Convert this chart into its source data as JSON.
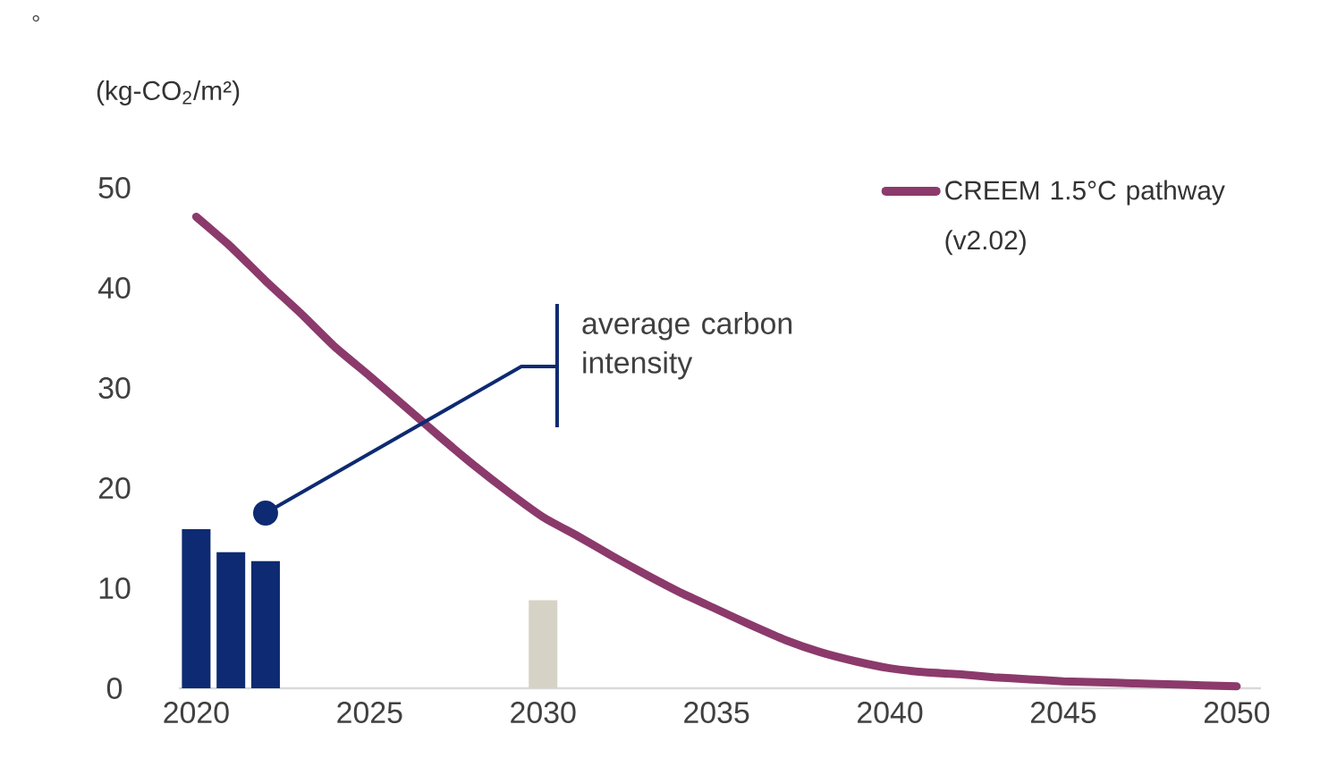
{
  "chart_data": {
    "type": "bar",
    "ylabel": "(kg-CO$_{2}$/m²)",
    "xlim": [
      2019.5,
      2050.7
    ],
    "ylim": [
      0,
      50
    ],
    "xticks": [
      2020,
      2025,
      2030,
      2035,
      2040,
      2045,
      2050
    ],
    "yticks": [
      0,
      10,
      20,
      30,
      40,
      50
    ],
    "grid": false,
    "legend": "top right",
    "series": [
      {
        "x": [
          2020,
          2021,
          2022,
          2030
        ],
        "values": [
          15.9,
          13.6,
          12.7,
          8.8
        ],
        "colors": [
          "#0d2a72",
          "#0d2a72",
          "#0d2a72",
          "#d6d2c6"
        ]
      },
      {
        "type": "line",
        "name": "CREEM 1.5°C pathway (v2.02)",
        "color": "#8b3a6b",
        "x": [
          2020,
          2021,
          2022,
          2023,
          2024,
          2025,
          2026,
          2027,
          2028,
          2029,
          2030,
          2031,
          2032,
          2033,
          2034,
          2035,
          2036,
          2037,
          2038,
          2039,
          2040,
          2041,
          2042,
          2043,
          2044,
          2045,
          2046,
          2047,
          2048,
          2049,
          2050
        ],
        "values": [
          47.1,
          44.1,
          40.7,
          37.5,
          34.1,
          31.2,
          28.2,
          25.2,
          22.3,
          19.6,
          17.1,
          15.2,
          13.2,
          11.3,
          9.5,
          7.9,
          6.3,
          4.8,
          3.6,
          2.7,
          2.0,
          1.6,
          1.4,
          1.1,
          0.9,
          0.7,
          0.6,
          0.5,
          0.4,
          0.3,
          0.2
        ]
      }
    ],
    "annotations": [
      "°",
      {
        "text": "average carbon intensity",
        "x": 2022,
        "y": 17.5
      }
    ]
  }
}
